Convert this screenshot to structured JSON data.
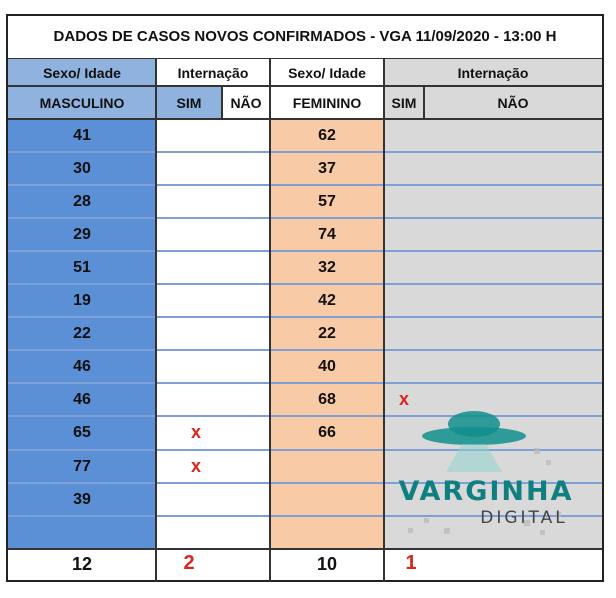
{
  "title": "DADOS DE CASOS NOVOS CONFIRMADOS - VGA  11/09/2020 - 13:00 H",
  "headers": {
    "sexo_idade_m": "Sexo/  Idade",
    "internacao_m": "Internação",
    "sexo_idade_f": "Sexo/  Idade",
    "internacao_f": "Internação",
    "masculino": "MASCULINO",
    "sim_m": "SIM",
    "nao_m": "NÃO",
    "feminino": "FEMININO",
    "sim_f": "SIM",
    "nao_f": "NÃO"
  },
  "rows": [
    {
      "m_age": "41",
      "m_sim": "",
      "f_age": "62",
      "f_sim": ""
    },
    {
      "m_age": "30",
      "m_sim": "",
      "f_age": "37",
      "f_sim": ""
    },
    {
      "m_age": "28",
      "m_sim": "",
      "f_age": "57",
      "f_sim": ""
    },
    {
      "m_age": "29",
      "m_sim": "",
      "f_age": "74",
      "f_sim": ""
    },
    {
      "m_age": "51",
      "m_sim": "",
      "f_age": "32",
      "f_sim": ""
    },
    {
      "m_age": "19",
      "m_sim": "",
      "f_age": "42",
      "f_sim": ""
    },
    {
      "m_age": "22",
      "m_sim": "",
      "f_age": "22",
      "f_sim": ""
    },
    {
      "m_age": "46",
      "m_sim": "",
      "f_age": "40",
      "f_sim": ""
    },
    {
      "m_age": "46",
      "m_sim": "",
      "f_age": "68",
      "f_sim": "x"
    },
    {
      "m_age": "65",
      "m_sim": "x",
      "f_age": "66",
      "f_sim": ""
    },
    {
      "m_age": "77",
      "m_sim": "x",
      "f_age": "",
      "f_sim": ""
    },
    {
      "m_age": "39",
      "m_sim": "",
      "f_age": "",
      "f_sim": ""
    },
    {
      "m_age": "",
      "m_sim": "",
      "f_age": "",
      "f_sim": ""
    }
  ],
  "totals": {
    "m_count": "12",
    "m_sim": "2",
    "f_count": "10",
    "f_sim": "1"
  },
  "watermark": {
    "line1": "VARGINHA",
    "line2": "DIGITAL"
  },
  "colors": {
    "male_col": "#5b8fd6",
    "female_col": "#f8cba6",
    "gray_col": "#d9d9d9",
    "header_blue": "#8fb2df",
    "row_line": "#7fa0d6",
    "mark_red": "#d9261c",
    "watermark_teal": "#0f8f8c"
  }
}
